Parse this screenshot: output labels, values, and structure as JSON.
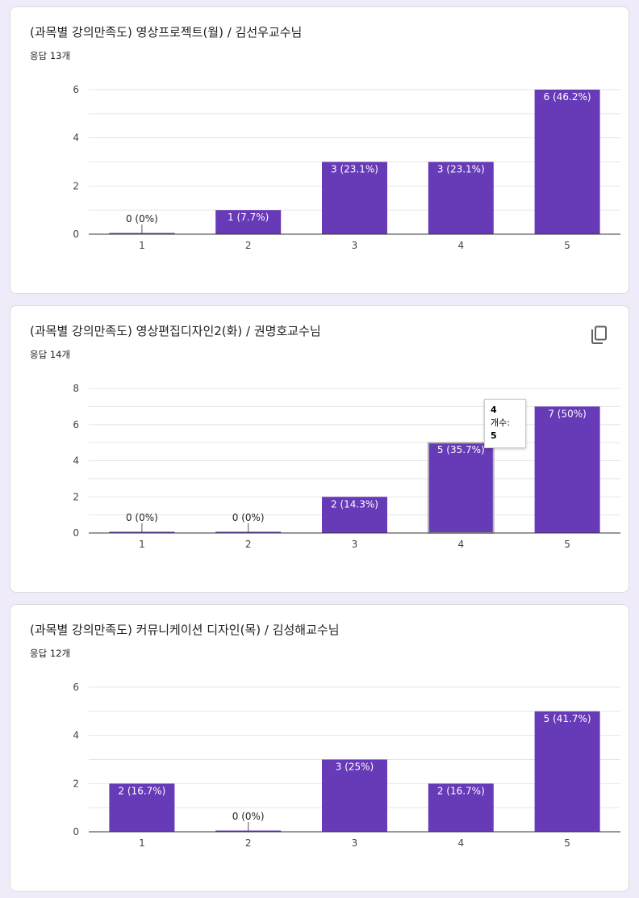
{
  "cards": [
    {
      "title": "(과목별 강의만족도) 영상프로젝트(월) / 김선우교수님",
      "responses": "응답 13개",
      "show_copy": false
    },
    {
      "title": "(과목별 강의만족도) 영상편집디자인2(화) / 권명호교수님",
      "responses": "응답 14개",
      "show_copy": true,
      "copy_icon": "copy-icon",
      "tooltip": {
        "title": "4",
        "label": "개수:",
        "value": "5"
      }
    },
    {
      "title": "(과목별 강의만족도) 커뮤니케이션 디자인(목) / 김성해교수님",
      "responses": "응답 12개",
      "show_copy": false
    }
  ],
  "colors": {
    "bar": "#673ab7",
    "grid": "#e6e6e6",
    "axis": "#333333",
    "background": "#efebf8"
  },
  "chart_data": [
    {
      "type": "bar",
      "categories": [
        "1",
        "2",
        "3",
        "4",
        "5"
      ],
      "values": [
        0,
        1,
        3,
        3,
        6
      ],
      "labels": [
        "0 (0%)",
        "1 (7.7%)",
        "3 (23.1%)",
        "3 (23.1%)",
        "6 (46.2%)"
      ],
      "ylim": [
        0,
        6
      ],
      "yticks": [
        0,
        2,
        4,
        6
      ],
      "grid": true
    },
    {
      "type": "bar",
      "categories": [
        "1",
        "2",
        "3",
        "4",
        "5"
      ],
      "values": [
        0,
        0,
        2,
        5,
        7
      ],
      "labels": [
        "0 (0%)",
        "0 (0%)",
        "2 (14.3%)",
        "5 (35.7%)",
        "7 (50%)"
      ],
      "ylim": [
        0,
        8
      ],
      "yticks": [
        0,
        2,
        4,
        6,
        8
      ],
      "grid": true,
      "highlight_index": 3
    },
    {
      "type": "bar",
      "categories": [
        "1",
        "2",
        "3",
        "4",
        "5"
      ],
      "values": [
        2,
        0,
        3,
        2,
        5
      ],
      "labels": [
        "2 (16.7%)",
        "0 (0%)",
        "3 (25%)",
        "2 (16.7%)",
        "5 (41.7%)"
      ],
      "ylim": [
        0,
        6
      ],
      "yticks": [
        0,
        2,
        4,
        6
      ],
      "grid": true
    }
  ]
}
